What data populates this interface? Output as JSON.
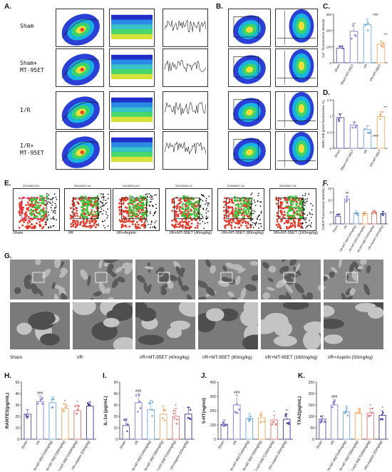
{
  "panels": {
    "A": {
      "label": "A.",
      "rows": [
        "Sham",
        "Sham+\nMT-95ET",
        "I/R",
        "I/R+\nMT-95ET"
      ]
    },
    "B": {
      "label": "B."
    },
    "C": {
      "label": "C.",
      "title": "",
      "ylabel": "Ca²⁺ fluorescence intensity",
      "significance": {
        "IR": "###",
        "IRMT": "***"
      }
    },
    "D": {
      "label": "D.",
      "ylabel": "MMP( red/ green fluorescence %)",
      "significance": {
        "IR": "###",
        "IRMT": "***"
      }
    },
    "E": {
      "label": "E.",
      "captions": [
        "Sham",
        "I/R",
        "I/R+Aspirin",
        "I/R+MT-95ET  (40mg/kg)",
        "I/R+MT-95ET  (80mg/kg)",
        "I/R+MT-95ET  (160mg/kg)"
      ],
      "sample_ids": [
        "20240513-01",
        "20240527-e4",
        "20240510-e2",
        "20240509-12",
        "20240507-13",
        "20240507-18"
      ]
    },
    "F": {
      "label": "F.",
      "ylabel": "CD62P fluorescence intensity (%)",
      "sig": [
        "##",
        "**",
        "**",
        "**",
        "*"
      ]
    },
    "G": {
      "label": "G.",
      "captions": [
        "Sham",
        "I/R",
        "I/R+MT-95ET  (40mg/kg)",
        "I/R+MT-95ET  (80mg/kg)",
        "I/R+MT-95ET  (160mg/kg)",
        "I/R+Aspirin  (50mg/kg)"
      ]
    },
    "H": {
      "label": "H."
    },
    "I": {
      "label": "I."
    },
    "J": {
      "label": "J."
    },
    "K": {
      "label": "K."
    }
  },
  "colors": {
    "sham": "#6c5fb5",
    "ir": "#8f86d4",
    "mt40": "#7ab0e0",
    "mt80": "#f0b070",
    "mt160": "#e47e7e",
    "aspirin": "#4a4a9e"
  },
  "chart_data": [
    {
      "panel": "C",
      "type": "bar",
      "categories": [
        "Sham",
        "Sham+MT-95ET",
        "I/R",
        "I/R+MT-95ET"
      ],
      "values": [
        90,
        195,
        235,
        115
      ],
      "errors": [
        15,
        50,
        35,
        20
      ],
      "ylabel": "Ca²⁺ fluorescence intensity",
      "ylim": [
        0,
        300
      ],
      "yticks": [
        0,
        100,
        200,
        300
      ]
    },
    {
      "panel": "D",
      "type": "bar",
      "categories": [
        "Sham",
        "Sham+MT-95ET",
        "I/R",
        "I/R+MT-95ET"
      ],
      "values": [
        0.95,
        0.72,
        0.58,
        0.98
      ],
      "errors": [
        0.12,
        0.1,
        0.12,
        0.15
      ],
      "ylabel": "MMP( red/ green fluorescence %)",
      "ylim": [
        0,
        1.5
      ],
      "yticks": [
        0,
        0.5,
        1.0,
        1.5
      ]
    },
    {
      "panel": "F",
      "type": "bar",
      "categories": [
        "Sham",
        "I/R",
        "I/R+MT-95ET(40mg/kg)",
        "I/R+MT-95ET(80mg/kg)",
        "I/R+MT-95ET(160mg/kg)",
        "I/R+Aspirin (50mg/kg)"
      ],
      "values": [
        3.2,
        10.5,
        4.6,
        4.4,
        4.8,
        4.3
      ],
      "errors": [
        1.0,
        1.2,
        0.9,
        0.8,
        0.9,
        0.9
      ],
      "ylabel": "CD62P fluorescence intensity (%)",
      "ylim": [
        0,
        15
      ],
      "yticks": [
        0,
        5,
        10,
        15
      ]
    },
    {
      "panel": "H",
      "type": "bar",
      "categories": [
        "Sham",
        "I/R",
        "I/R+MT-95ET(40mg/kg)",
        "I/R+MT-95ET(80mg/kg)",
        "I/R+MT-95ET(160mg/kg)",
        "I/R+Aspirin (50mg/kg)"
      ],
      "values": [
        22,
        33,
        32,
        27,
        25,
        29
      ],
      "errors": [
        4,
        5,
        5,
        4,
        5,
        4
      ],
      "ylabel": "RANTES(pg/mL)",
      "ylim": [
        0,
        50
      ],
      "yticks": [
        0,
        10,
        20,
        30,
        40,
        50
      ],
      "significance": [
        "",
        "###",
        "",
        "*",
        "*",
        ""
      ]
    },
    {
      "panel": "I",
      "type": "bar",
      "categories": [
        "Sham",
        "I/R",
        "I/R+MT-95ET(40mg/kg)",
        "I/R+MT-95ET(80mg/kg)",
        "I/R+MT-95ET(160mg/kg)",
        "I/R+Aspirin (50mg/kg)"
      ],
      "values": [
        12,
        32,
        26,
        22,
        20,
        22
      ],
      "errors": [
        6,
        8,
        8,
        7,
        7,
        6
      ],
      "ylabel": "IL-1α (pg/mL)",
      "ylim": [
        0,
        50
      ],
      "yticks": [
        0,
        10,
        20,
        30,
        40,
        50
      ],
      "significance": [
        "",
        "###",
        "",
        "",
        "*",
        ""
      ]
    },
    {
      "panel": "J",
      "type": "bar",
      "categories": [
        "Sham",
        "I/R",
        "I/R+MT-95ET(40mg/kg)",
        "I/R+MT-95ET(80mg/kg)",
        "I/R+MT-95ET(160mg/kg)",
        "I/R+Aspirin (50mg/kg)"
      ],
      "values": [
        105,
        240,
        145,
        150,
        135,
        140
      ],
      "errors": [
        30,
        70,
        35,
        40,
        35,
        40
      ],
      "ylabel": "5-HT(ng/ml)",
      "ylim": [
        0,
        400
      ],
      "yticks": [
        0,
        100,
        200,
        300,
        400
      ],
      "significance": [
        "",
        "###",
        "",
        "",
        "*",
        "**"
      ]
    },
    {
      "panel": "K",
      "type": "bar",
      "categories": [
        "Sham",
        "I/R",
        "I/R+MT-95ET(40mg/kg)",
        "I/R+MT-95ET(80mg/kg)",
        "I/R+MT-95ET(160mg/kg)",
        "I/R+Aspirin (50mg/kg)"
      ],
      "values": [
        88,
        150,
        120,
        115,
        115,
        105
      ],
      "errors": [
        15,
        25,
        25,
        20,
        20,
        20
      ],
      "ylabel": "TXA2(pg/mL)",
      "ylim": [
        0,
        250
      ],
      "yticks": [
        0,
        50,
        100,
        150,
        200,
        250
      ],
      "significance": [
        "",
        "###",
        "",
        "",
        "*",
        "*"
      ]
    }
  ]
}
